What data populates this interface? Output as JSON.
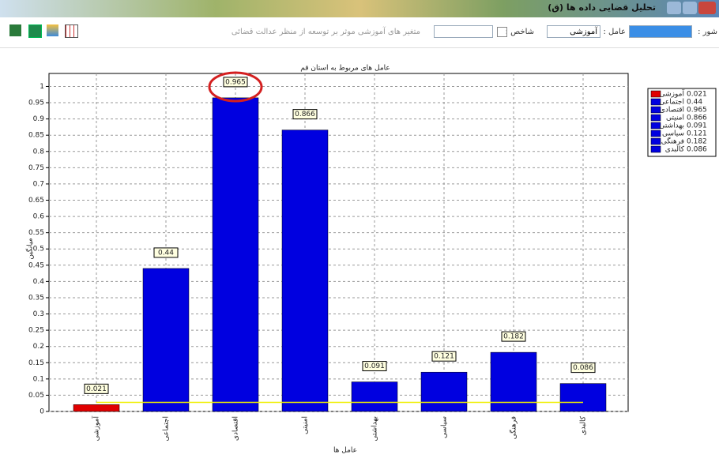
{
  "window": {
    "title": "تحلیل قضایی داده ها (ق)"
  },
  "toolbar": {
    "province_label": "شور :",
    "factor_label": "عامل :",
    "factor_value": "آموزشی",
    "index_label": "شاخص :",
    "variable_text": "متغیر های آموزشی موثر بر توسعه از منظر عدالت قضائی"
  },
  "chart_data": {
    "type": "bar",
    "title": "عامل های مربوط به استان قم",
    "x_label": "عامل ها",
    "y_label": "میانگین",
    "categories": [
      "آموزشی",
      "اجتماعی",
      "اقتصادی",
      "امنیتی",
      "بهداشتی",
      "سیاسی",
      "فرهنگی",
      "کالبدی"
    ],
    "values": [
      0.021,
      0.44,
      0.965,
      0.866,
      0.091,
      0.121,
      0.182,
      0.086
    ],
    "colors": [
      "#e00000",
      "#0000e0",
      "#0000e0",
      "#0000e0",
      "#0000e0",
      "#0000e0",
      "#0000e0",
      "#0000e0"
    ],
    "ylim": [
      0,
      1.04
    ],
    "yticks": [
      0,
      0.05,
      0.1,
      0.15,
      0.2,
      0.25,
      0.3,
      0.35,
      0.4,
      0.45,
      0.5,
      0.55,
      0.6,
      0.65,
      0.7,
      0.75,
      0.8,
      0.85,
      0.9,
      0.95,
      1
    ],
    "reference_line": {
      "value": 0.028,
      "color": "#f0f000"
    },
    "grid": true,
    "legend": "right"
  }
}
